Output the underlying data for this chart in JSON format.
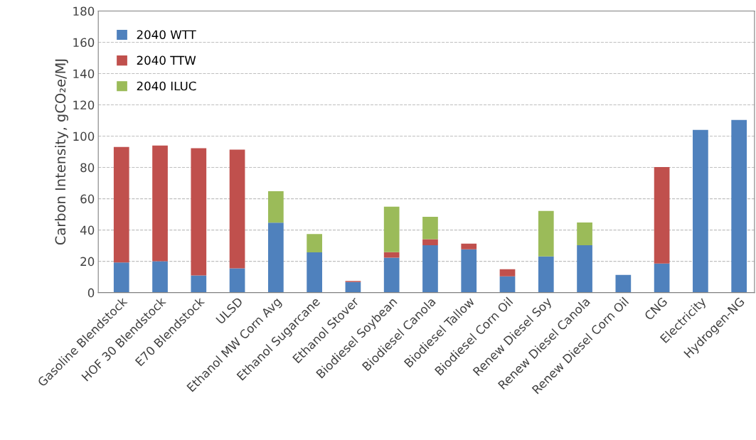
{
  "chart_data": {
    "type": "bar",
    "stacked": true,
    "ylabel": "Carbon Intensity, gCO₂e/MJ",
    "categories": [
      "Gasoline Blendstock",
      "HOF 30 Blendstock",
      "E70 Blendstock",
      "ULSD",
      "Ethanol MW Corn Avg",
      "Ethanol Sugarcane",
      "Ethanol Stover",
      "Biodiesel Soybean",
      "Biodiesel Canola",
      "Biodiesel Tallow",
      "Biodiesel Corn Oil",
      "Renew Diesel Soy",
      "Renew Diesel Canola",
      "Renew Diesel Corn Oil",
      "CNG",
      "Electricity",
      "Hydrogen-NG"
    ],
    "series": [
      {
        "name": "2040 WTT",
        "color": "#4f81bd",
        "values": [
          19.3,
          20.1,
          11,
          15.5,
          44.7,
          25.7,
          6.8,
          22.3,
          30.3,
          27.7,
          10.4,
          23.1,
          30.3,
          11.3,
          18.6,
          104,
          110.4
        ]
      },
      {
        "name": "2040 TTW",
        "color": "#c0504d",
        "values": [
          73.8,
          73.9,
          81.3,
          75.9,
          null,
          null,
          0.6,
          3.6,
          3.8,
          3.6,
          4.5,
          null,
          null,
          null,
          61.6,
          null,
          null
        ]
      },
      {
        "name": "2040 ILUC",
        "color": "#9bbb59",
        "values": [
          null,
          null,
          null,
          null,
          20.1,
          11.7,
          null,
          29,
          14.3,
          null,
          null,
          29.1,
          14.5,
          null,
          null,
          null,
          null
        ]
      }
    ],
    "ylim": [
      0,
      180
    ],
    "yticks": [
      0,
      20,
      40,
      60,
      80,
      100,
      120,
      140,
      160,
      180
    ],
    "grid": "y",
    "legend": "top left"
  }
}
